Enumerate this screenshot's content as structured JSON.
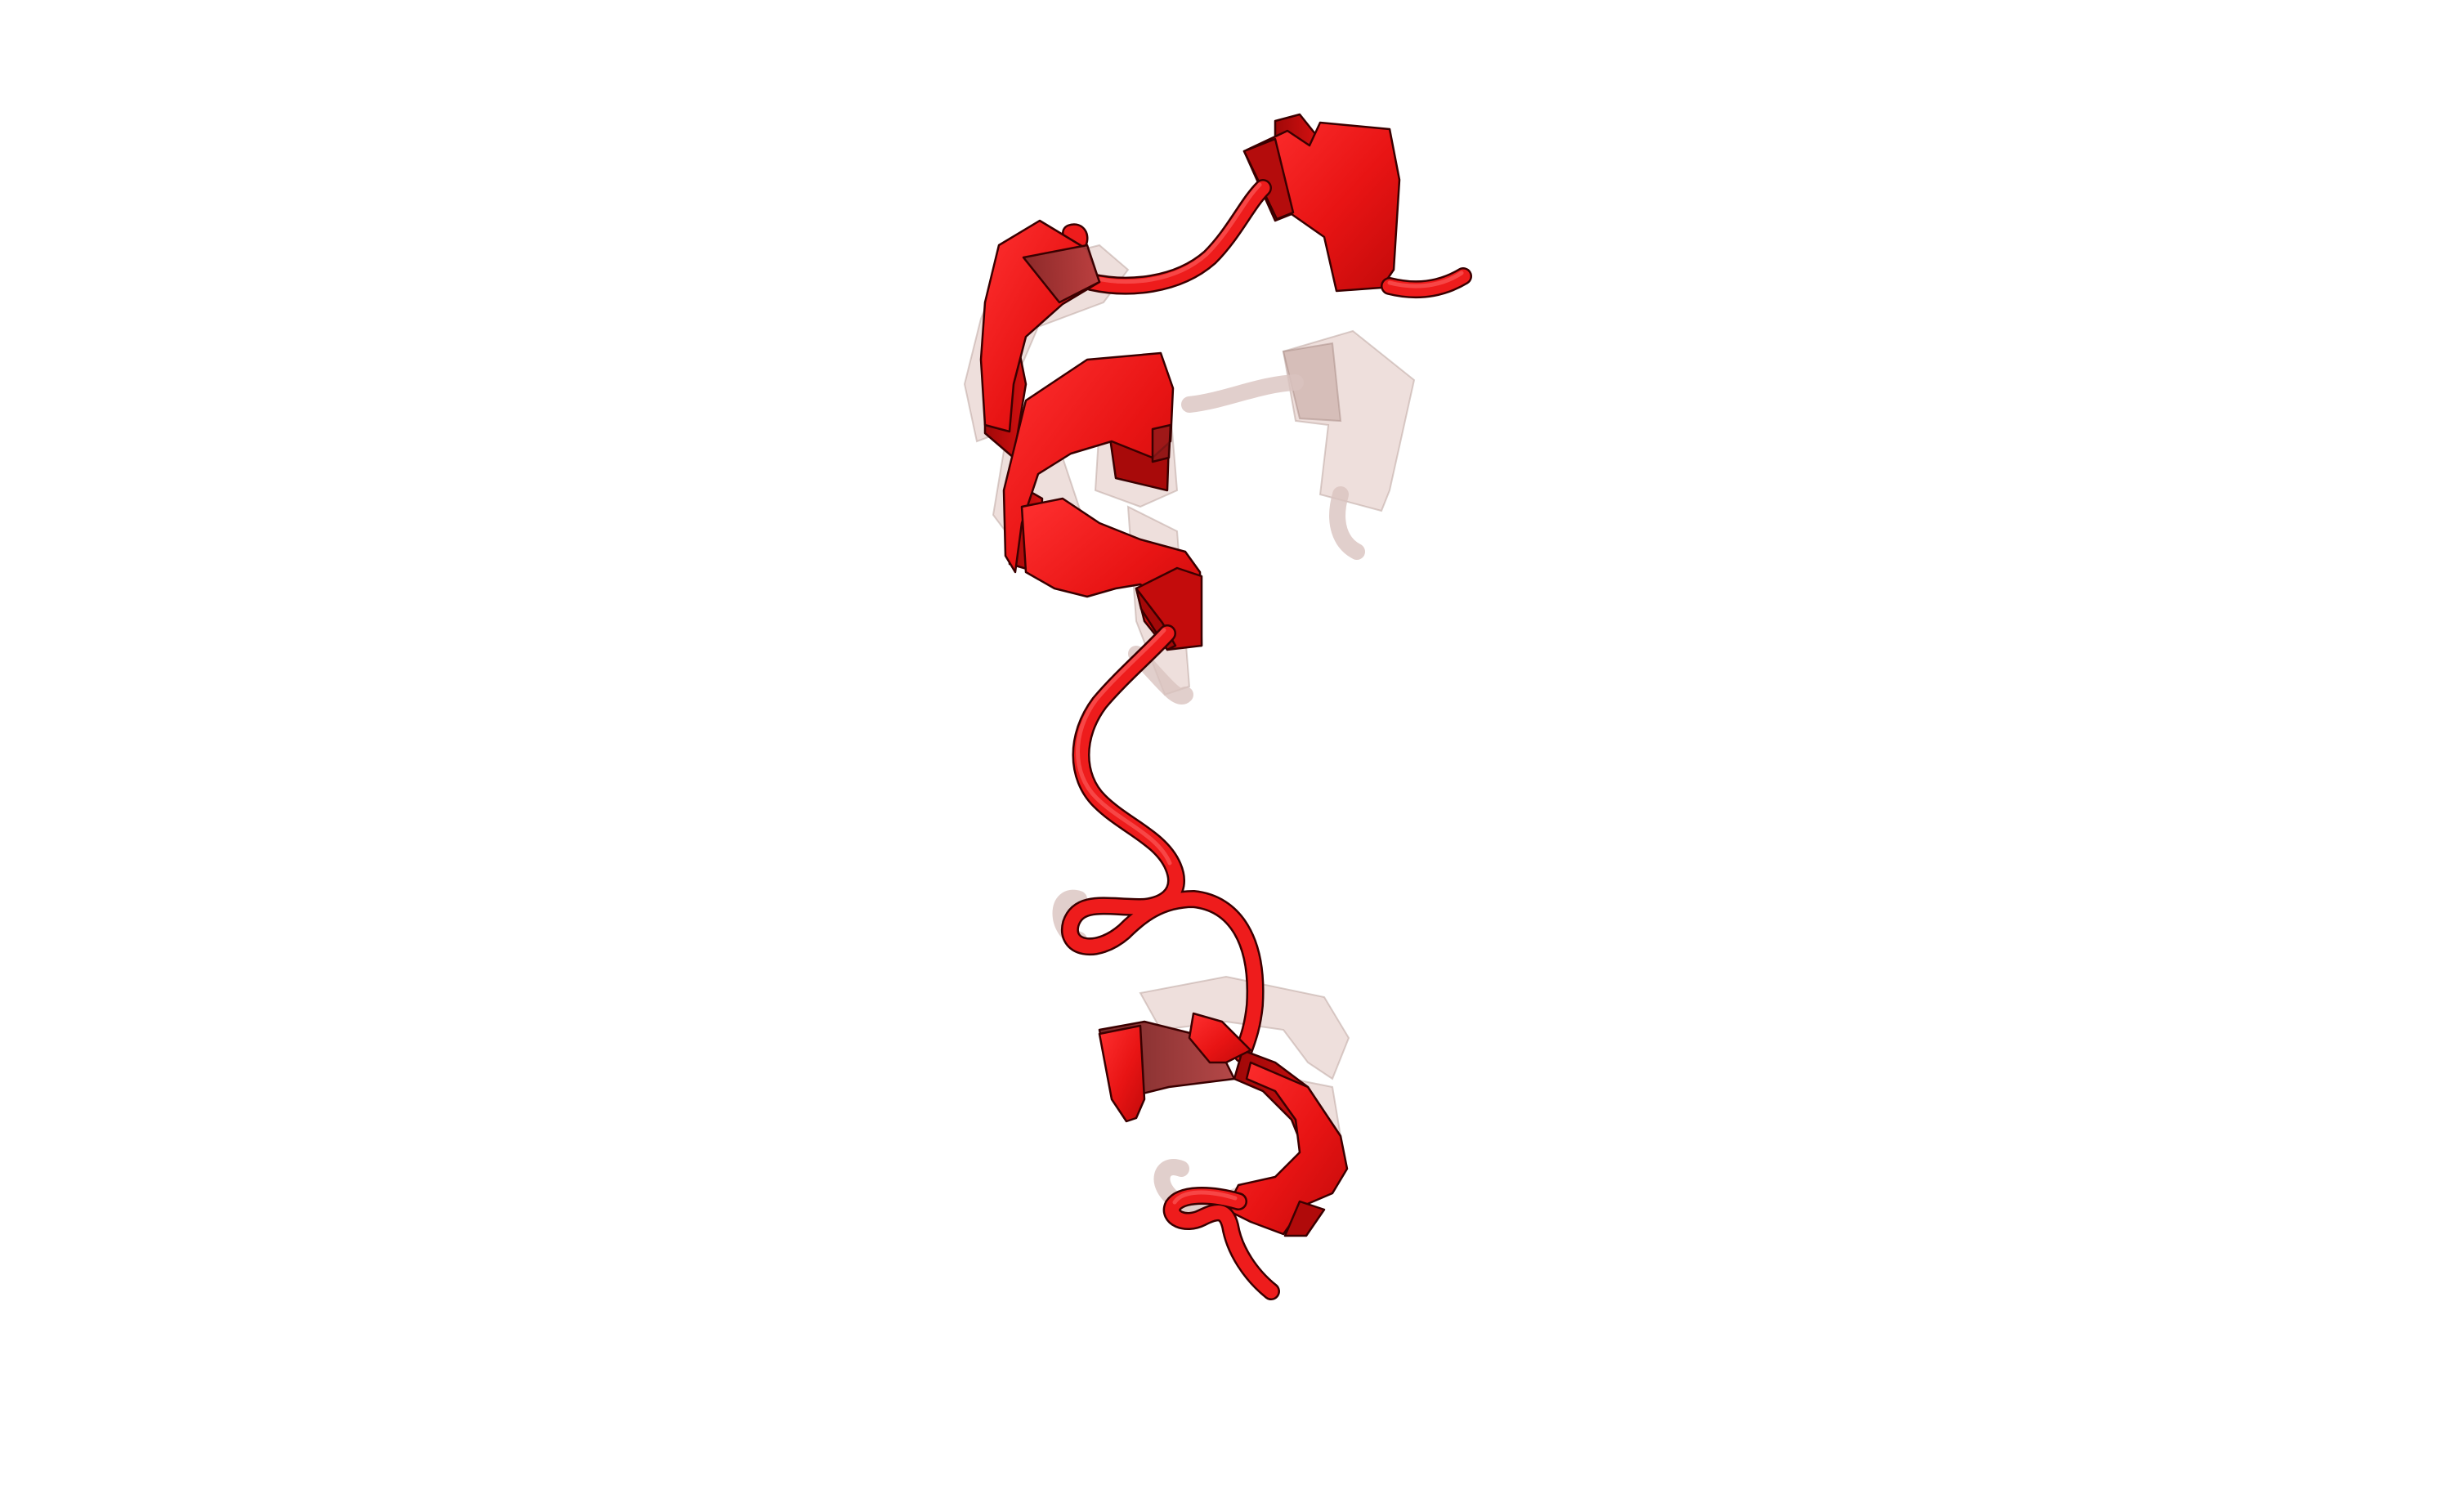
{
  "scene": {
    "subject": "protein-cartoon",
    "background_color": "#ffffff",
    "primary_color": "#ee1c1c",
    "ghost_color": "#e8d4d0"
  }
}
